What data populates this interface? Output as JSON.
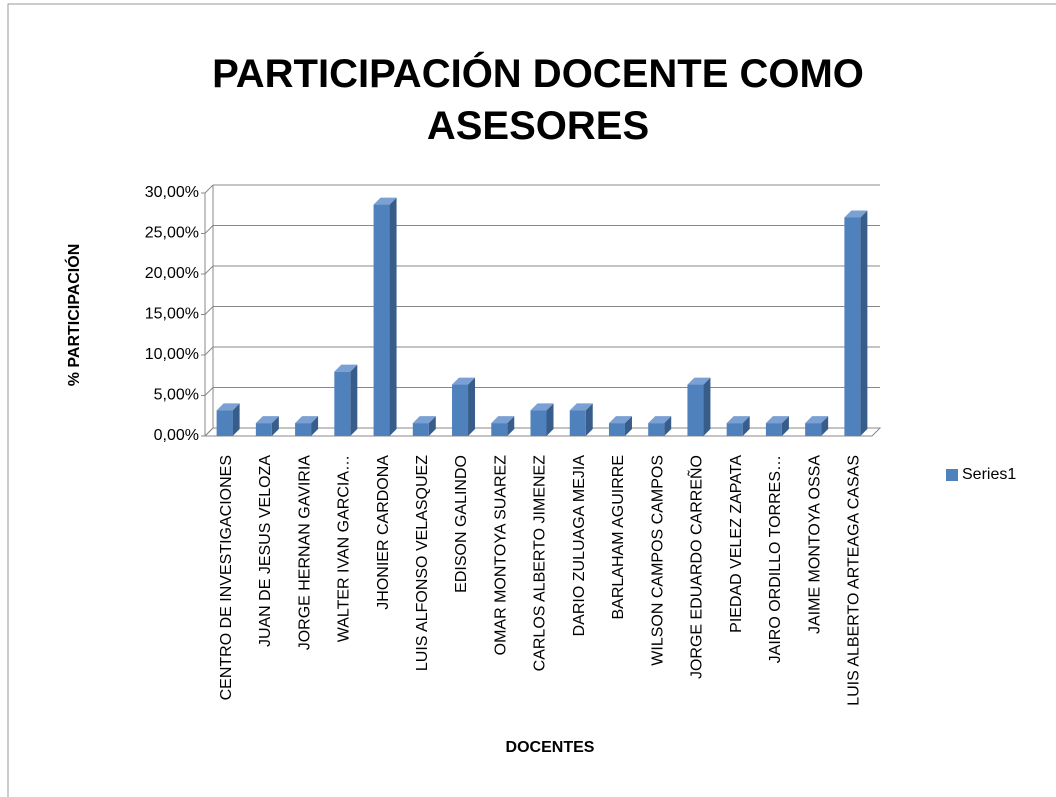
{
  "chart_data": {
    "type": "bar3d",
    "title": "PARTICIPACIÓN DOCENTE COMO ASESORES",
    "y_label": "% PARTICIPACIÓN",
    "x_label": "DOCENTES",
    "categories": [
      "CENTRO DE INVESTIGACIONES",
      "JUAN DE JESUS VELOZA",
      "JORGE HERNAN GAVIRIA",
      "WALTER IVAN GARCIA…",
      "JHONIER CARDONA",
      "LUIS ALFONSO VELASQUEZ",
      "EDISON GALINDO",
      "OMAR MONTOYA  SUAREZ",
      "CARLOS ALBERTO JIMENEZ",
      "DARIO ZULUAGA MEJIA",
      "BARLAHAM AGUIRRE",
      "WILSON CAMPOS CAMPOS",
      "JORGE EDUARDO CARREÑO",
      "PIEDAD VELEZ ZAPATA",
      "JAIRO ORDILLO TORRES…",
      "JAIME MONTOYA OSSA",
      "LUIS ALBERTO ARTEAGA CASAS"
    ],
    "series": [
      {
        "name": "Series1",
        "color": "#4f81bd",
        "values": [
          3.17,
          1.59,
          1.59,
          7.94,
          28.57,
          1.59,
          6.35,
          1.59,
          3.17,
          3.17,
          1.59,
          1.59,
          6.35,
          1.59,
          1.59,
          1.59,
          26.98
        ]
      }
    ],
    "ylim": [
      0,
      30
    ],
    "yticks": [
      {
        "value": 0,
        "label": "0,00%"
      },
      {
        "value": 5,
        "label": "5,00%"
      },
      {
        "value": 10,
        "label": "10,00%"
      },
      {
        "value": 15,
        "label": "15,00%"
      },
      {
        "value": 20,
        "label": "20,00%"
      },
      {
        "value": 25,
        "label": "25,00%"
      },
      {
        "value": 30,
        "label": "30,00%"
      }
    ],
    "grid": true,
    "legend": "right"
  }
}
